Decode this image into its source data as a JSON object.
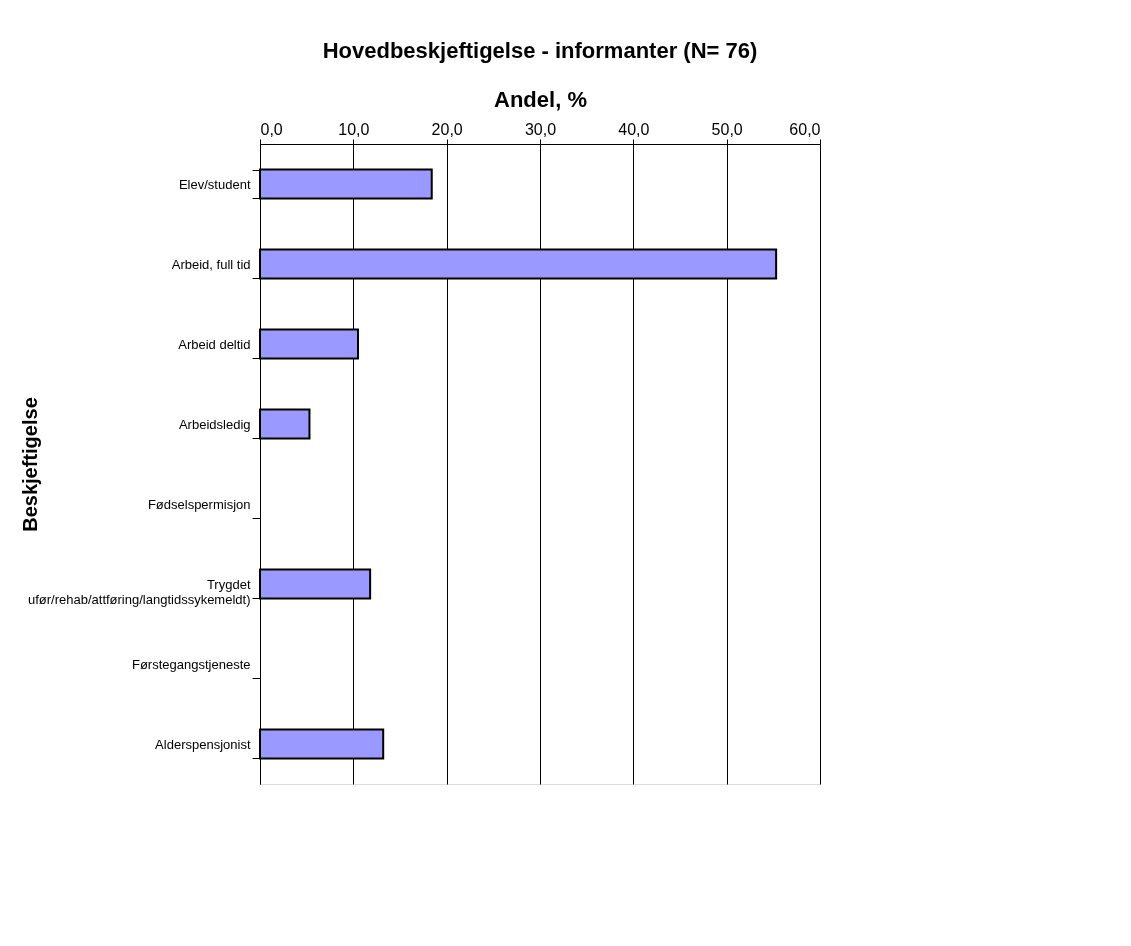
{
  "chart_data": {
    "type": "bar",
    "orientation": "horizontal",
    "title": "Hovedbeskjeftigelse - informanter (N= 76)",
    "xlabel": "Andel, %",
    "ylabel": "Beskjeftigelse",
    "categories": [
      "Elev/student",
      "Arbeid, full tid",
      "Arbeid deltid",
      "Arbeidsledig",
      "Fødselspermisjon",
      "Trygdet\nufør/rehab/attføring/langtidssykemeldt)",
      "Førstegangstjeneste",
      "Alderspensjonist"
    ],
    "values": [
      18.4,
      55.3,
      10.5,
      5.3,
      0,
      11.8,
      0,
      13.2
    ],
    "color": "#9999ff",
    "xlim": [
      0,
      60
    ],
    "xticks": [
      {
        "value": 0,
        "label": "0,0"
      },
      {
        "value": 10,
        "label": "10,0"
      },
      {
        "value": 20,
        "label": "20,0"
      },
      {
        "value": 30,
        "label": "30,0"
      },
      {
        "value": 40,
        "label": "40,0"
      },
      {
        "value": 50,
        "label": "50,0"
      },
      {
        "value": 60,
        "label": "60,0"
      }
    ],
    "grid": "x"
  }
}
